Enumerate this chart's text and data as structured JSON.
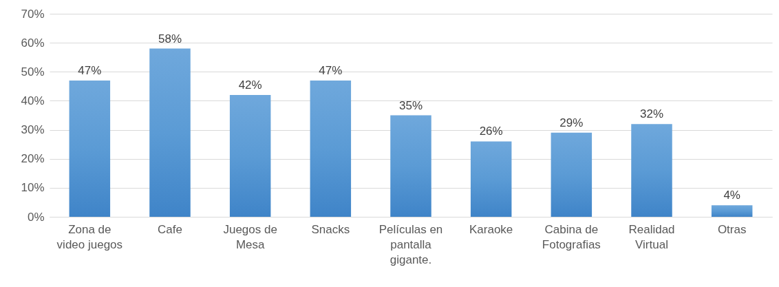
{
  "chart_data": {
    "type": "bar",
    "categories": [
      "Zona de video juegos",
      "Cafe",
      "Juegos de Mesa",
      "Snacks",
      "Películas en pantalla gigante.",
      "Karaoke",
      "Cabina de Fotografias",
      "Realidad Virtual",
      "Otras"
    ],
    "values": [
      47,
      58,
      42,
      47,
      35,
      26,
      29,
      32,
      4
    ],
    "value_labels": [
      "47%",
      "58%",
      "42%",
      "47%",
      "35%",
      "26%",
      "29%",
      "32%",
      "4%"
    ],
    "color": "#5b9bd5",
    "ylim": [
      0,
      70
    ],
    "yticks": [
      {
        "value": 0,
        "label": "0%"
      },
      {
        "value": 10,
        "label": "10%"
      },
      {
        "value": 20,
        "label": "20%"
      },
      {
        "value": 30,
        "label": "30%"
      },
      {
        "value": 40,
        "label": "40%"
      },
      {
        "value": 50,
        "label": "50%"
      },
      {
        "value": 60,
        "label": "60%"
      },
      {
        "value": 70,
        "label": "70%"
      }
    ],
    "grid": "y"
  }
}
